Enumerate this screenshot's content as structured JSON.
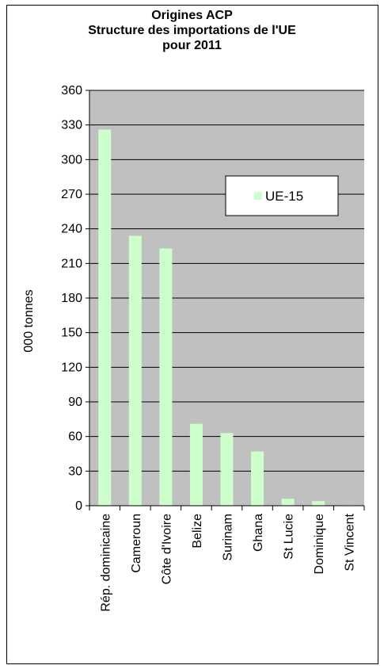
{
  "chart_data": {
    "type": "bar",
    "title_lines": [
      "Origines ACP",
      "Structure des importations de l'UE",
      "pour 2011"
    ],
    "xlabel": "",
    "ylabel": "000 tonnes",
    "ylim": [
      0,
      360
    ],
    "yticks": [
      0,
      30,
      60,
      90,
      120,
      150,
      180,
      210,
      240,
      270,
      300,
      330,
      360
    ],
    "categories": [
      "Rép. dominicaine",
      "Cameroun",
      "Côte d'Ivoire",
      "Belize",
      "Surinam",
      "Ghana",
      "St Lucie",
      "Dominique",
      "St Vincent"
    ],
    "series": [
      {
        "name": "UE-15",
        "values": [
          326,
          234,
          223,
          71,
          63,
          47,
          6,
          4,
          0.5
        ],
        "color": "#ccffcc"
      }
    ],
    "grid": true,
    "legend_position": "right",
    "plot_background": "#c0c0c0"
  }
}
